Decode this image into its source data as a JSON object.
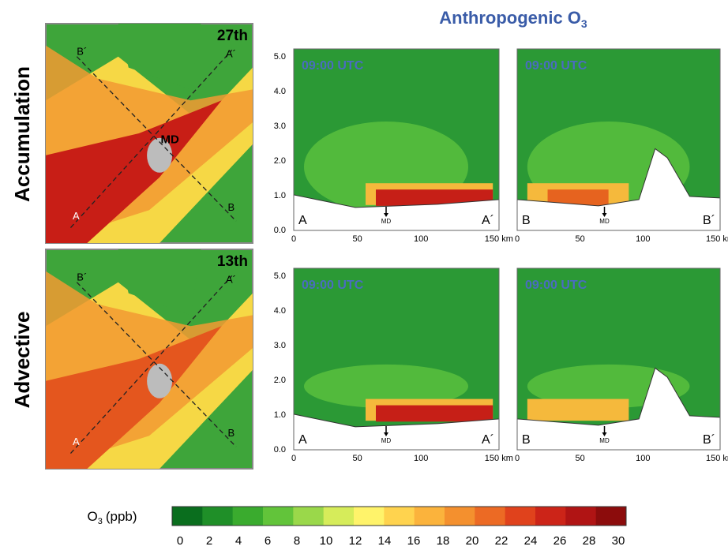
{
  "title": {
    "text": "Anthropogenic O",
    "subscript": "3"
  },
  "rows": [
    {
      "label": "Accumulation",
      "map": {
        "day": "27th",
        "center": "MD",
        "a": "A",
        "a2": "A´",
        "b": "B",
        "b2": "B´"
      },
      "sections": [
        {
          "time": "09:00 UTC",
          "start": "A",
          "end": "A´",
          "marker": "MD"
        },
        {
          "time": "09:00 UTC",
          "start": "B",
          "end": "B´",
          "marker": "MD"
        }
      ]
    },
    {
      "label": "Advective",
      "map": {
        "day": "13th",
        "a": "A",
        "a2": "A´",
        "b": "B",
        "b2": "B´"
      },
      "sections": [
        {
          "time": "09:00 UTC",
          "start": "A",
          "end": "A´",
          "marker": "MD"
        },
        {
          "time": "09:00 UTC",
          "start": "B",
          "end": "B´",
          "marker": "MD"
        }
      ]
    }
  ],
  "axes": {
    "y_ticks": [
      "0.0",
      "1.0",
      "2.0",
      "3.0",
      "4.0",
      "5.0"
    ],
    "x_ticks": [
      "0",
      "50",
      "100",
      "150 km"
    ]
  },
  "colorbar": {
    "label": "O",
    "subscript": "3",
    "unit": "(ppb)",
    "ticks": [
      "0",
      "2",
      "4",
      "6",
      "8",
      "10",
      "12",
      "14",
      "16",
      "18",
      "20",
      "22",
      "24",
      "26",
      "28",
      "30"
    ]
  }
}
